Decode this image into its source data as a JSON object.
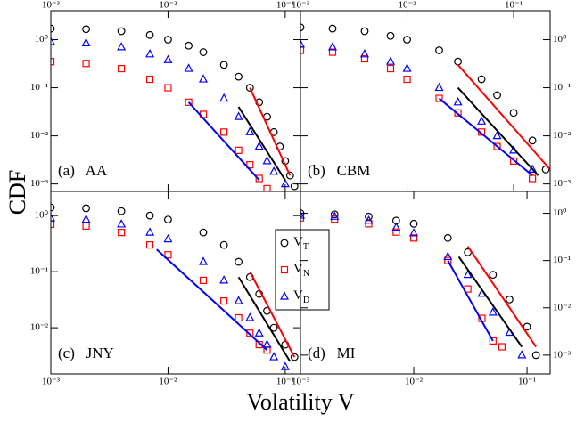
{
  "axis_labels": {
    "y": "CDF",
    "x": "Volatility V"
  },
  "chart_data": [
    {
      "type": "scatter",
      "title": "(a)   AA",
      "log_x": true,
      "log_y": true,
      "x_axis_side": "top",
      "y_axis_side": "left",
      "xlim": [
        0.001,
        0.135
      ],
      "ylim": [
        0.0007,
        4
      ],
      "xticks": [
        {
          "value": 0.001,
          "label": "10⁻³"
        },
        {
          "value": 0.01,
          "label": "10⁻²"
        },
        {
          "value": 0.1,
          "label": "10⁻¹"
        }
      ],
      "yticks": [
        {
          "value": 1,
          "label": "10⁰"
        },
        {
          "value": 0.1,
          "label": "10⁻¹"
        },
        {
          "value": 0.01,
          "label": "10⁻²"
        },
        {
          "value": 0.001,
          "label": "10⁻³"
        }
      ],
      "series": [
        {
          "color": "#000000",
          "marker": "circle",
          "x": [
            0.001,
            0.002,
            0.004,
            0.007,
            0.01,
            0.015,
            0.02,
            0.03,
            0.04,
            0.05,
            0.06,
            0.07,
            0.08,
            0.09,
            0.1,
            0.11,
            0.12
          ],
          "values": [
            1.7,
            1.65,
            1.5,
            1.25,
            1.0,
            0.75,
            0.55,
            0.3,
            0.17,
            0.1,
            0.05,
            0.025,
            0.012,
            0.006,
            0.003,
            0.0015,
            0.0009
          ]
        },
        {
          "color": "#ff0000",
          "marker": "square",
          "x": [
            0.001,
            0.002,
            0.004,
            0.007,
            0.01,
            0.015,
            0.02,
            0.03,
            0.04,
            0.05,
            0.06,
            0.07
          ],
          "values": [
            0.35,
            0.32,
            0.25,
            0.15,
            0.1,
            0.05,
            0.028,
            0.012,
            0.005,
            0.0025,
            0.0013,
            0.0008
          ]
        },
        {
          "color": "#0000ff",
          "marker": "triangle",
          "x": [
            0.001,
            0.002,
            0.004,
            0.007,
            0.01,
            0.015,
            0.02,
            0.03,
            0.04,
            0.05,
            0.06,
            0.07,
            0.08,
            0.1
          ],
          "values": [
            0.9,
            0.85,
            0.7,
            0.5,
            0.38,
            0.25,
            0.15,
            0.06,
            0.025,
            0.012,
            0.006,
            0.003,
            0.0018,
            0.001
          ]
        },
        {
          "color": "#ff0000",
          "marker": "line",
          "x": [
            0.05,
            0.11
          ],
          "values": [
            0.1,
            0.0015
          ]
        },
        {
          "color": "#000000",
          "marker": "line",
          "x": [
            0.04,
            0.1
          ],
          "values": [
            0.04,
            0.0012
          ]
        },
        {
          "color": "#0000ff",
          "marker": "line",
          "x": [
            0.015,
            0.06
          ],
          "values": [
            0.05,
            0.0012
          ]
        }
      ]
    },
    {
      "type": "scatter",
      "title": "(b)   CBM",
      "log_x": true,
      "log_y": true,
      "x_axis_side": "top",
      "y_axis_side": "right",
      "xlim": [
        0.001,
        0.22
      ],
      "ylim": [
        0.0007,
        4
      ],
      "xticks": [
        {
          "value": 0.001,
          "label": "10⁻³"
        },
        {
          "value": 0.01,
          "label": "10⁻²"
        },
        {
          "value": 0.1,
          "label": "10⁻¹"
        }
      ],
      "yticks": [
        {
          "value": 1,
          "label": "10⁰"
        },
        {
          "value": 0.1,
          "label": "10⁻¹"
        },
        {
          "value": 0.01,
          "label": "10⁻²"
        },
        {
          "value": 0.001,
          "label": "10⁻³"
        }
      ],
      "series": [
        {
          "color": "#000000",
          "marker": "circle",
          "x": [
            0.001,
            0.002,
            0.004,
            0.007,
            0.01,
            0.02,
            0.03,
            0.05,
            0.07,
            0.1,
            0.15,
            0.2
          ],
          "values": [
            1.8,
            1.7,
            1.5,
            1.2,
            1.0,
            0.6,
            0.35,
            0.15,
            0.07,
            0.03,
            0.008,
            0.002
          ]
        },
        {
          "color": "#ff0000",
          "marker": "square",
          "x": [
            0.001,
            0.002,
            0.004,
            0.007,
            0.01,
            0.02,
            0.03,
            0.05,
            0.07,
            0.1,
            0.15
          ],
          "values": [
            0.6,
            0.55,
            0.4,
            0.25,
            0.15,
            0.06,
            0.03,
            0.012,
            0.006,
            0.003,
            0.0013
          ]
        },
        {
          "color": "#0000ff",
          "marker": "triangle",
          "x": [
            0.001,
            0.002,
            0.004,
            0.007,
            0.01,
            0.02,
            0.03,
            0.05,
            0.07,
            0.1,
            0.15
          ],
          "values": [
            0.8,
            0.7,
            0.5,
            0.35,
            0.25,
            0.1,
            0.05,
            0.02,
            0.01,
            0.005,
            0.002
          ]
        },
        {
          "color": "#ff0000",
          "marker": "line",
          "x": [
            0.03,
            0.22
          ],
          "values": [
            0.3,
            0.002
          ]
        },
        {
          "color": "#000000",
          "marker": "line",
          "x": [
            0.03,
            0.17
          ],
          "values": [
            0.1,
            0.0015
          ]
        },
        {
          "color": "#0000ff",
          "marker": "line",
          "x": [
            0.02,
            0.15
          ],
          "values": [
            0.06,
            0.0015
          ]
        }
      ]
    },
    {
      "type": "scatter",
      "title": "(c)   JNY",
      "log_x": true,
      "log_y": true,
      "x_axis_side": "bottom",
      "y_axis_side": "left",
      "xlim": [
        0.001,
        0.135
      ],
      "ylim": [
        0.0015,
        2.7
      ],
      "legend": "center right",
      "xticks": [
        {
          "value": 0.001,
          "label": "10⁻³"
        },
        {
          "value": 0.01,
          "label": "10⁻²"
        },
        {
          "value": 0.1,
          "label": "10⁻¹"
        }
      ],
      "yticks": [
        {
          "value": 1,
          "label": "10⁰"
        },
        {
          "value": 0.1,
          "label": "10⁻¹"
        },
        {
          "value": 0.01,
          "label": "10⁻²"
        }
      ],
      "series": [
        {
          "name": "VT",
          "color": "#000000",
          "marker": "circle",
          "x": [
            0.001,
            0.002,
            0.004,
            0.007,
            0.01,
            0.02,
            0.03,
            0.04,
            0.05,
            0.06,
            0.07,
            0.08,
            0.1,
            0.12
          ],
          "values": [
            1.4,
            1.35,
            1.2,
            1.0,
            0.85,
            0.5,
            0.3,
            0.15,
            0.08,
            0.04,
            0.02,
            0.01,
            0.005,
            0.003
          ]
        },
        {
          "name": "VN",
          "color": "#ff0000",
          "marker": "square",
          "x": [
            0.001,
            0.002,
            0.004,
            0.007,
            0.01,
            0.02,
            0.03,
            0.04,
            0.05,
            0.06,
            0.07
          ],
          "values": [
            0.7,
            0.65,
            0.5,
            0.3,
            0.2,
            0.07,
            0.03,
            0.015,
            0.008,
            0.005,
            0.004
          ]
        },
        {
          "name": "VD",
          "color": "#0000ff",
          "marker": "triangle",
          "x": [
            0.001,
            0.002,
            0.004,
            0.007,
            0.01,
            0.02,
            0.03,
            0.04,
            0.05,
            0.06,
            0.07,
            0.08,
            0.1
          ],
          "values": [
            0.9,
            0.85,
            0.7,
            0.5,
            0.38,
            0.15,
            0.07,
            0.03,
            0.015,
            0.008,
            0.005,
            0.003,
            0.002
          ]
        },
        {
          "color": "#ff0000",
          "marker": "line",
          "x": [
            0.05,
            0.12
          ],
          "values": [
            0.1,
            0.003
          ]
        },
        {
          "color": "#000000",
          "marker": "line",
          "x": [
            0.04,
            0.11
          ],
          "values": [
            0.08,
            0.0025
          ]
        },
        {
          "color": "#0000ff",
          "marker": "line",
          "x": [
            0.008,
            0.07
          ],
          "values": [
            0.25,
            0.004
          ]
        }
      ]
    },
    {
      "type": "scatter",
      "title": "(d)   MI",
      "log_x": true,
      "log_y": true,
      "x_axis_side": "bottom",
      "y_axis_side": "right",
      "xlim": [
        0.001,
        0.16
      ],
      "ylim": [
        0.0004,
        2.9
      ],
      "xticks": [
        {
          "value": 0.001,
          "label": "10⁻³"
        },
        {
          "value": 0.01,
          "label": "10⁻²"
        },
        {
          "value": 0.1,
          "label": "10⁻¹"
        }
      ],
      "yticks": [
        {
          "value": 1,
          "label": "10⁰"
        },
        {
          "value": 0.1,
          "label": "10⁻¹"
        },
        {
          "value": 0.01,
          "label": "10⁻²"
        },
        {
          "value": 0.001,
          "label": "10⁻³"
        }
      ],
      "series": [
        {
          "color": "#000000",
          "marker": "circle",
          "x": [
            0.001,
            0.002,
            0.004,
            0.007,
            0.01,
            0.02,
            0.03,
            0.05,
            0.07,
            0.1,
            0.12
          ],
          "values": [
            1.0,
            0.95,
            0.85,
            0.7,
            0.6,
            0.3,
            0.15,
            0.05,
            0.015,
            0.004,
            0.001
          ]
        },
        {
          "color": "#ff0000",
          "marker": "square",
          "x": [
            0.001,
            0.002,
            0.004,
            0.007,
            0.01,
            0.02,
            0.03,
            0.04,
            0.05,
            0.06
          ],
          "values": [
            0.8,
            0.75,
            0.6,
            0.4,
            0.3,
            0.1,
            0.025,
            0.006,
            0.002,
            0.0015
          ]
        },
        {
          "color": "#0000ff",
          "marker": "triangle",
          "x": [
            0.001,
            0.002,
            0.004,
            0.007,
            0.01,
            0.02,
            0.03,
            0.04,
            0.05,
            0.07,
            0.09
          ],
          "values": [
            0.9,
            0.85,
            0.7,
            0.5,
            0.38,
            0.12,
            0.05,
            0.02,
            0.008,
            0.003,
            0.001
          ]
        },
        {
          "color": "#ff0000",
          "marker": "line",
          "x": [
            0.03,
            0.12
          ],
          "values": [
            0.2,
            0.0015
          ]
        },
        {
          "color": "#000000",
          "marker": "line",
          "x": [
            0.025,
            0.09
          ],
          "values": [
            0.12,
            0.0015
          ]
        },
        {
          "color": "#0000ff",
          "marker": "line",
          "x": [
            0.02,
            0.05
          ],
          "values": [
            0.1,
            0.002
          ]
        }
      ]
    }
  ]
}
